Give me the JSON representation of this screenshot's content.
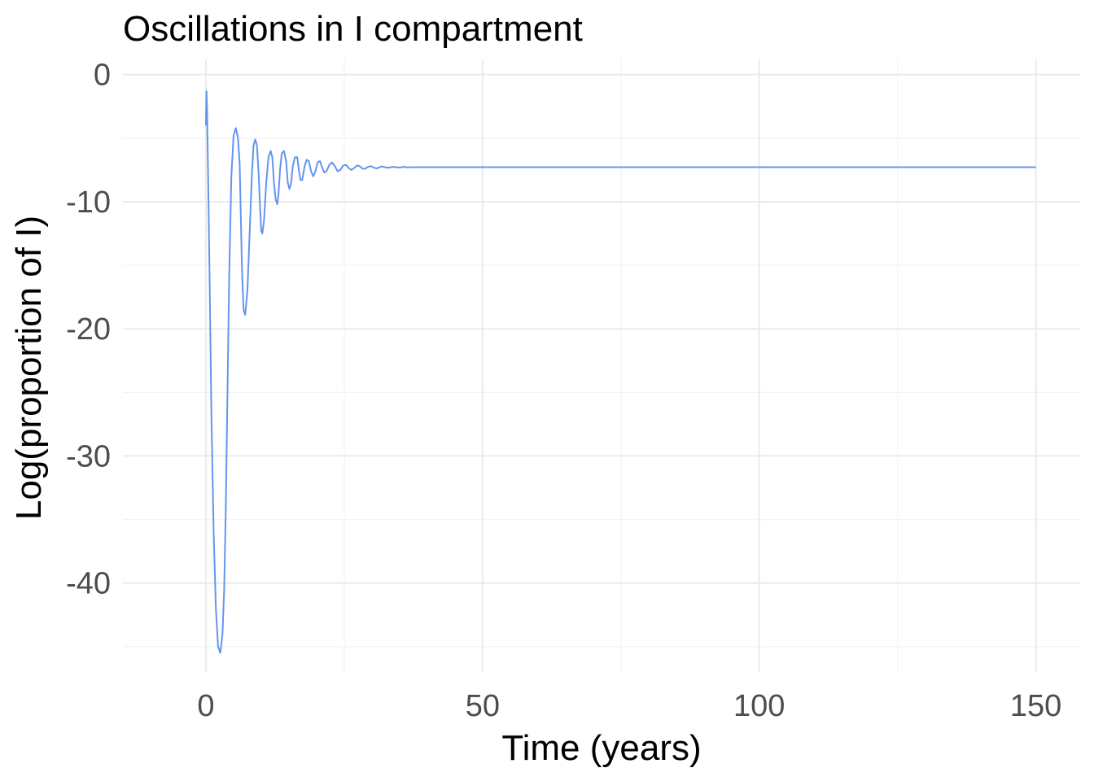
{
  "chart_data": {
    "type": "line",
    "title": "Oscillations in I compartment",
    "xlabel": "Time (years)",
    "ylabel": "Log(proportion of I)",
    "xlim": [
      -15,
      158
    ],
    "ylim": [
      -47,
      1.2
    ],
    "x_ticks": [
      0,
      50,
      100,
      150
    ],
    "x_tick_labels": [
      "0",
      "50",
      "100",
      "150"
    ],
    "y_ticks": [
      0,
      -10,
      -20,
      -30,
      -40
    ],
    "y_tick_labels": [
      "0",
      "-10",
      "-20",
      "-30",
      "-40"
    ],
    "grid": true,
    "legend": "none",
    "series": [
      {
        "color": "#6495ed",
        "x": [
          0.0,
          0.1,
          0.2,
          0.4,
          0.7,
          1.0,
          1.4,
          1.8,
          2.2,
          2.6,
          3.0,
          3.3,
          3.6,
          3.9,
          4.2,
          4.6,
          5.0,
          5.4,
          5.8,
          6.1,
          6.3,
          6.5,
          6.8,
          7.1,
          7.5,
          7.9,
          8.3,
          8.6,
          8.9,
          9.2,
          9.5,
          9.8,
          10.0,
          10.2,
          10.5,
          10.9,
          11.3,
          11.7,
          12.0,
          12.3,
          12.6,
          12.9,
          13.1,
          13.4,
          13.7,
          14.1,
          14.5,
          14.8,
          15.1,
          15.4,
          15.7,
          16.1,
          16.5,
          16.8,
          17.1,
          17.4,
          17.8,
          18.2,
          18.6,
          19.0,
          19.4,
          19.8,
          20.2,
          20.6,
          21.0,
          21.4,
          21.8,
          22.3,
          22.8,
          23.3,
          23.8,
          24.3,
          24.8,
          25.3,
          25.8,
          26.3,
          26.8,
          27.3,
          27.8,
          28.3,
          28.8,
          29.3,
          29.8,
          30.3,
          30.8,
          31.3,
          31.8,
          32.3,
          32.8,
          33.3,
          33.8,
          34.3,
          34.8,
          35.3,
          35.8,
          36.3,
          36.8,
          37.3,
          38.0,
          39.0,
          40.0,
          50.0,
          75.0,
          100.0,
          125.0,
          150.0
        ],
        "y": [
          -4.0,
          -1.3,
          -2.5,
          -8.0,
          -17.0,
          -27.0,
          -36.0,
          -42.0,
          -45.0,
          -45.5,
          -44.0,
          -40.5,
          -34.0,
          -25.0,
          -16.0,
          -8.0,
          -4.8,
          -4.2,
          -5.0,
          -7.0,
          -11.0,
          -15.0,
          -18.5,
          -18.9,
          -17.0,
          -12.5,
          -8.0,
          -5.6,
          -5.1,
          -5.5,
          -7.5,
          -10.5,
          -12.3,
          -12.5,
          -11.5,
          -8.5,
          -6.5,
          -6.0,
          -6.5,
          -8.5,
          -9.8,
          -10.2,
          -9.5,
          -7.5,
          -6.2,
          -6.0,
          -6.8,
          -8.5,
          -9.0,
          -8.5,
          -7.2,
          -6.5,
          -6.5,
          -7.5,
          -8.3,
          -8.3,
          -7.3,
          -6.7,
          -6.8,
          -7.6,
          -8.0,
          -7.6,
          -6.9,
          -6.8,
          -7.3,
          -7.7,
          -7.6,
          -7.1,
          -6.9,
          -7.2,
          -7.6,
          -7.5,
          -7.15,
          -7.1,
          -7.35,
          -7.5,
          -7.35,
          -7.15,
          -7.2,
          -7.4,
          -7.4,
          -7.25,
          -7.2,
          -7.3,
          -7.38,
          -7.3,
          -7.22,
          -7.28,
          -7.33,
          -7.3,
          -7.25,
          -7.28,
          -7.31,
          -7.29,
          -7.26,
          -7.28,
          -7.3,
          -7.28,
          -7.28,
          -7.28,
          -7.28,
          -7.28,
          -7.28,
          -7.28,
          -7.28,
          -7.28
        ]
      }
    ]
  }
}
